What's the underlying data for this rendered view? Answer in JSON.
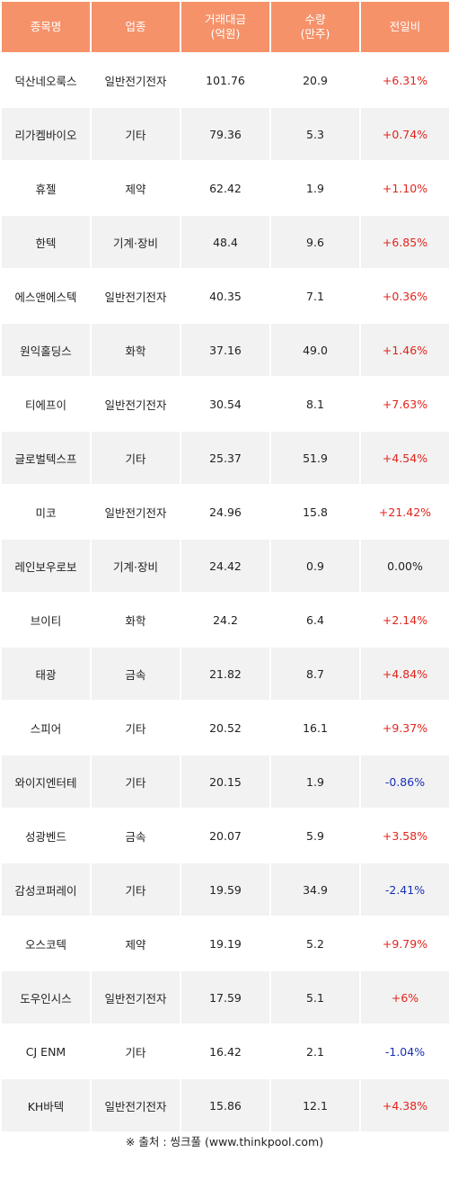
{
  "headers": [
    "종목명",
    "업종",
    "거래대금\n(억원)",
    "수량\n(만주)",
    "전일비"
  ],
  "rows": [
    {
      "name": "덕산네오룩스",
      "sector": "일반전기전자",
      "amount": "101.76",
      "volume": "20.9",
      "change": "+6.31%",
      "dir": "up"
    },
    {
      "name": "리가켐바이오",
      "sector": "기타",
      "amount": "79.36",
      "volume": "5.3",
      "change": "+0.74%",
      "dir": "up"
    },
    {
      "name": "휴젤",
      "sector": "제약",
      "amount": "62.42",
      "volume": "1.9",
      "change": "+1.10%",
      "dir": "up"
    },
    {
      "name": "한텍",
      "sector": "기계·장비",
      "amount": "48.4",
      "volume": "9.6",
      "change": "+6.85%",
      "dir": "up"
    },
    {
      "name": "에스앤에스텍",
      "sector": "일반전기전자",
      "amount": "40.35",
      "volume": "7.1",
      "change": "+0.36%",
      "dir": "up"
    },
    {
      "name": "원익홀딩스",
      "sector": "화학",
      "amount": "37.16",
      "volume": "49.0",
      "change": "+1.46%",
      "dir": "up"
    },
    {
      "name": "티에프이",
      "sector": "일반전기전자",
      "amount": "30.54",
      "volume": "8.1",
      "change": "+7.63%",
      "dir": "up"
    },
    {
      "name": "글로벌텍스프",
      "sector": "기타",
      "amount": "25.37",
      "volume": "51.9",
      "change": "+4.54%",
      "dir": "up"
    },
    {
      "name": "미코",
      "sector": "일반전기전자",
      "amount": "24.96",
      "volume": "15.8",
      "change": "+21.42%",
      "dir": "up"
    },
    {
      "name": "레인보우로보",
      "sector": "기계·장비",
      "amount": "24.42",
      "volume": "0.9",
      "change": "0.00%",
      "dir": "flat"
    },
    {
      "name": "브이티",
      "sector": "화학",
      "amount": "24.2",
      "volume": "6.4",
      "change": "+2.14%",
      "dir": "up"
    },
    {
      "name": "태광",
      "sector": "금속",
      "amount": "21.82",
      "volume": "8.7",
      "change": "+4.84%",
      "dir": "up"
    },
    {
      "name": "스피어",
      "sector": "기타",
      "amount": "20.52",
      "volume": "16.1",
      "change": "+9.37%",
      "dir": "up"
    },
    {
      "name": "와이지엔터테",
      "sector": "기타",
      "amount": "20.15",
      "volume": "1.9",
      "change": "-0.86%",
      "dir": "down"
    },
    {
      "name": "성광벤드",
      "sector": "금속",
      "amount": "20.07",
      "volume": "5.9",
      "change": "+3.58%",
      "dir": "up"
    },
    {
      "name": "감성코퍼레이",
      "sector": "기타",
      "amount": "19.59",
      "volume": "34.9",
      "change": "-2.41%",
      "dir": "down"
    },
    {
      "name": "오스코텍",
      "sector": "제약",
      "amount": "19.19",
      "volume": "5.2",
      "change": "+9.79%",
      "dir": "up"
    },
    {
      "name": "도우인시스",
      "sector": "일반전기전자",
      "amount": "17.59",
      "volume": "5.1",
      "change": "+6%",
      "dir": "up"
    },
    {
      "name": "CJ ENM",
      "sector": "기타",
      "amount": "16.42",
      "volume": "2.1",
      "change": "-1.04%",
      "dir": "down"
    },
    {
      "name": "KH바텍",
      "sector": "일반전기전자",
      "amount": "15.86",
      "volume": "12.1",
      "change": "+4.38%",
      "dir": "up"
    }
  ],
  "colors": {
    "header_bg": "#f5926a",
    "up": "#e2241d",
    "down": "#1a2fb8",
    "row_alt": "#f2f2f2"
  },
  "source": "※ 출처 : 씽크풀 (www.thinkpool.com)"
}
